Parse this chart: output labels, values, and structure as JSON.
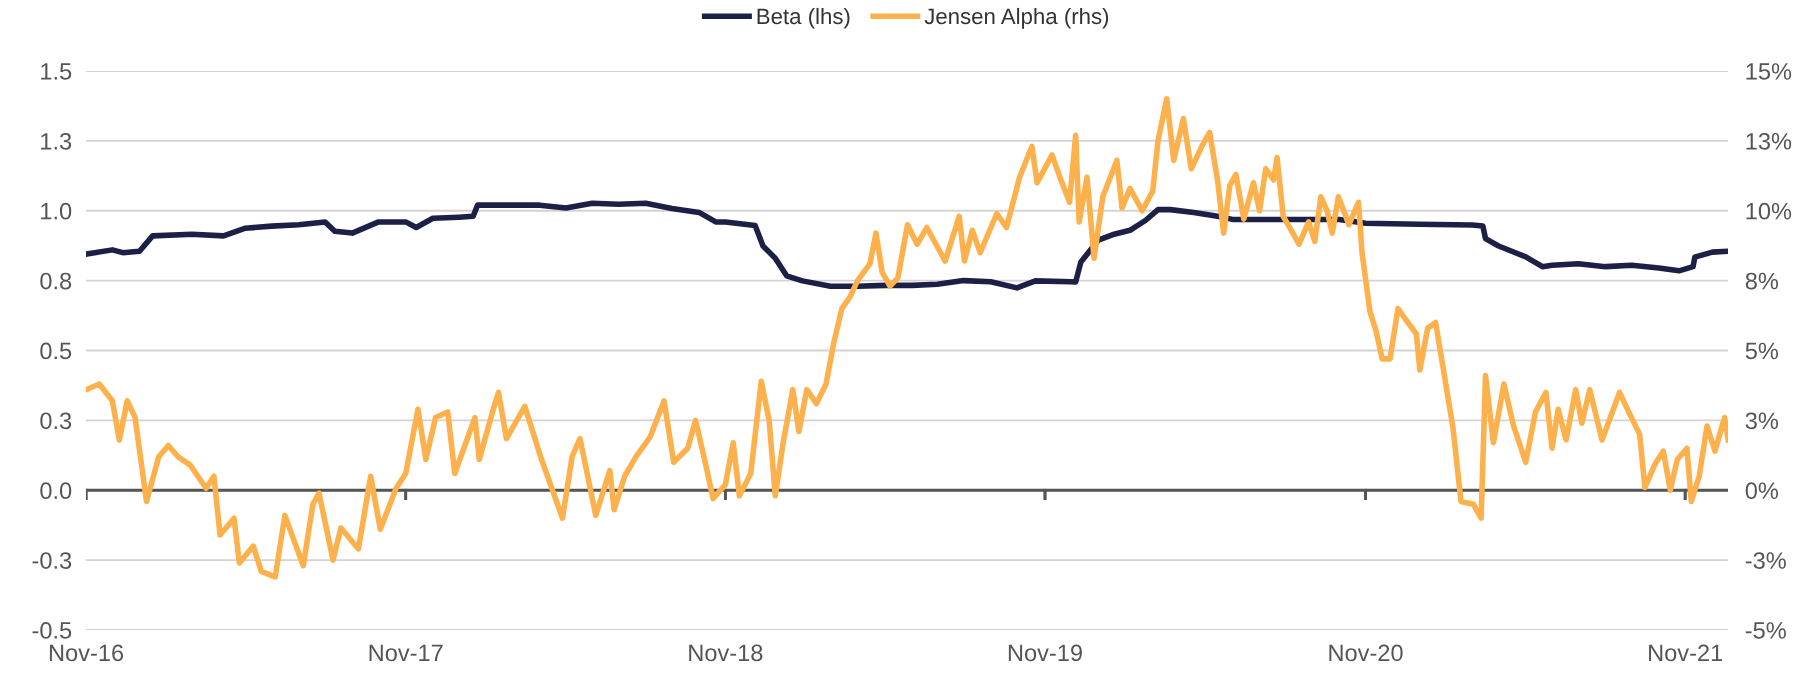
{
  "chart_data": {
    "type": "line",
    "xlim": [
      "2016-11-01",
      "2021-12-20"
    ],
    "xticks": [
      {
        "value": "2016-11-01",
        "label": "Nov-16"
      },
      {
        "value": "2017-11-01",
        "label": "Nov-17"
      },
      {
        "value": "2018-11-01",
        "label": "Nov-18"
      },
      {
        "value": "2019-11-01",
        "label": "Nov-19"
      },
      {
        "value": "2020-11-01",
        "label": "Nov-20"
      },
      {
        "value": "2021-11-01",
        "label": "Nov-21"
      }
    ],
    "ylim": [
      -0.5,
      1.5
    ],
    "yticks": [
      {
        "value": -0.5,
        "label": "-0.5"
      },
      {
        "value": -0.25,
        "label": "-0.3"
      },
      {
        "value": 0,
        "label": "0.0"
      },
      {
        "value": 0.25,
        "label": "0.3"
      },
      {
        "value": 0.5,
        "label": "0.5"
      },
      {
        "value": 0.75,
        "label": "0.8"
      },
      {
        "value": 1,
        "label": "1.0"
      },
      {
        "value": 1.25,
        "label": "1.3"
      },
      {
        "value": 1.5,
        "label": "1.5"
      }
    ],
    "y2lim": [
      -5,
      15
    ],
    "y2ticks": [
      {
        "value": -5,
        "label": "-5%"
      },
      {
        "value": -2.5,
        "label": "-3%"
      },
      {
        "value": 0,
        "label": "0%"
      },
      {
        "value": 2.5,
        "label": "3%"
      },
      {
        "value": 5,
        "label": "5%"
      },
      {
        "value": 7.5,
        "label": "8%"
      },
      {
        "value": 10,
        "label": "10%"
      },
      {
        "value": 12.5,
        "label": "13%"
      },
      {
        "value": 15,
        "label": "15%"
      }
    ],
    "ref_lines": [
      {
        "axis": "y",
        "value": 0,
        "color": "#555555"
      }
    ],
    "grid": "y",
    "legend": "top",
    "marker": "none",
    "line_style": "solid",
    "series": [
      {
        "name": "Beta (lhs)",
        "color": "#1c2046",
        "x": [
          "2016-11-01",
          "2016-12-01",
          "2016-12-13",
          "2017-01-01",
          "2017-01-16",
          "2017-03-02",
          "2017-04-07",
          "2017-05-02",
          "2017-06-01",
          "2017-07-02",
          "2017-08-01",
          "2017-08-12",
          "2017-09-01",
          "2017-10-01",
          "2017-11-01",
          "2017-11-13",
          "2017-12-02",
          "2018-01-01",
          "2018-01-17",
          "2018-01-22",
          "2018-03-03",
          "2018-04-03",
          "2018-05-03",
          "2018-06-02",
          "2018-07-02",
          "2018-08-02",
          "2018-09-01",
          "2018-10-02",
          "2018-10-21",
          "2018-11-01",
          "2018-12-05",
          "2018-12-14",
          "2018-12-28",
          "2019-01-10",
          "2019-01-28",
          "2019-03-01",
          "2019-04-01",
          "2019-05-03",
          "2019-06-03",
          "2019-07-01",
          "2019-07-31",
          "2019-08-31",
          "2019-09-30",
          "2019-10-21",
          "2019-11-30",
          "2019-12-06",
          "2019-12-12",
          "2020-01-01",
          "2020-01-19",
          "2020-02-06",
          "2020-02-24",
          "2020-03-09",
          "2020-03-23",
          "2020-04-19",
          "2020-05-16",
          "2020-06-02",
          "2020-08-02",
          "2020-10-02",
          "2020-11-01",
          "2021-01-01",
          "2021-03-03",
          "2021-03-15",
          "2021-03-18",
          "2021-04-02",
          "2021-05-03",
          "2021-05-22",
          "2021-06-02",
          "2021-07-02",
          "2021-08-02",
          "2021-09-01",
          "2021-10-02",
          "2021-10-25",
          "2021-11-10",
          "2021-11-12",
          "2021-12-02",
          "2021-12-20"
        ],
        "values": [
          0.845,
          0.86,
          0.85,
          0.855,
          0.91,
          0.916,
          0.91,
          0.9375,
          0.945,
          0.95,
          0.96,
          0.927,
          0.92,
          0.96,
          0.96,
          0.94,
          0.973,
          0.977,
          0.98,
          1.02,
          1.02,
          1.02,
          1.01,
          1.027,
          1.023,
          1.027,
          1.008,
          0.994,
          0.96,
          0.96,
          0.947,
          0.874,
          0.83,
          0.767,
          0.749,
          0.73,
          0.73,
          0.733,
          0.733,
          0.737,
          0.75,
          0.746,
          0.724,
          0.749,
          0.746,
          0.745,
          0.817,
          0.895,
          0.916,
          0.93,
          0.966,
          1.004,
          1.004,
          0.994,
          0.98,
          0.969,
          0.969,
          0.969,
          0.955,
          0.952,
          0.949,
          0.945,
          0.9,
          0.874,
          0.835,
          0.8,
          0.805,
          0.81,
          0.8,
          0.805,
          0.795,
          0.785,
          0.8,
          0.834,
          0.852,
          0.855
        ]
      },
      {
        "name": "Jensen Alpha (rhs)",
        "color": "#fdb14d",
        "axis": "y2",
        "x": [
          "2016-11-01",
          "2016-11-16",
          "2016-12-01",
          "2016-12-09",
          "2016-12-18",
          "2016-12-27",
          "2017-01-09",
          "2017-01-23",
          "2017-02-03",
          "2017-02-14",
          "2017-02-28",
          "2017-03-18",
          "2017-03-27",
          "2017-04-03",
          "2017-04-19",
          "2017-04-25",
          "2017-05-11",
          "2017-05-20",
          "2017-06-05",
          "2017-06-16",
          "2017-07-07",
          "2017-07-18",
          "2017-07-25",
          "2017-08-10",
          "2017-08-19",
          "2017-09-08",
          "2017-09-22",
          "2017-10-03",
          "2017-10-21",
          "2017-11-01",
          "2017-11-15",
          "2017-11-24",
          "2017-12-05",
          "2017-12-19",
          "2017-12-27",
          "2018-01-19",
          "2018-01-24",
          "2018-02-09",
          "2018-02-15",
          "2018-02-24",
          "2018-03-17",
          "2018-04-04",
          "2018-04-29",
          "2018-05-10",
          "2018-05-19",
          "2018-06-06",
          "2018-06-22",
          "2018-06-27",
          "2018-07-09",
          "2018-07-22",
          "2018-08-07",
          "2018-08-23",
          "2018-09-03",
          "2018-09-19",
          "2018-09-28",
          "2018-10-09",
          "2018-10-18",
          "2018-11-01",
          "2018-11-10",
          "2018-11-17",
          "2018-11-30",
          "2018-12-12",
          "2018-12-21",
          "2018-12-28",
          "2019-01-06",
          "2019-01-17",
          "2019-01-24",
          "2019-02-02",
          "2019-02-13",
          "2019-02-24",
          "2019-03-05",
          "2019-03-14",
          "2019-03-23",
          "2019-04-01",
          "2019-04-15",
          "2019-04-22",
          "2019-04-29",
          "2019-05-08",
          "2019-05-17",
          "2019-05-28",
          "2019-06-08",
          "2019-06-19",
          "2019-07-10",
          "2019-07-26",
          "2019-08-01",
          "2019-08-10",
          "2019-08-19",
          "2019-09-07",
          "2019-09-18",
          "2019-10-03",
          "2019-10-17",
          "2019-10-23",
          "2019-11-09",
          "2019-11-18",
          "2019-11-29",
          "2019-12-06",
          "2019-12-10",
          "2019-12-19",
          "2019-12-27",
          "2020-01-06",
          "2020-01-22",
          "2020-01-28",
          "2020-02-06",
          "2020-02-20",
          "2020-03-03",
          "2020-03-09",
          "2020-03-19",
          "2020-03-27",
          "2020-04-07",
          "2020-04-16",
          "2020-04-28",
          "2020-05-07",
          "2020-05-16",
          "2020-05-23",
          "2020-05-30",
          "2020-06-06",
          "2020-06-15",
          "2020-06-26",
          "2020-07-03",
          "2020-07-10",
          "2020-07-19",
          "2020-07-23",
          "2020-07-30",
          "2020-08-10",
          "2020-08-17",
          "2020-08-28",
          "2020-09-04",
          "2020-09-11",
          "2020-09-18",
          "2020-09-24",
          "2020-10-01",
          "2020-10-13",
          "2020-10-24",
          "2020-10-28",
          "2020-11-06",
          "2020-11-13",
          "2020-11-20",
          "2020-11-29",
          "2020-12-08",
          "2020-12-17",
          "2020-12-29",
          "2021-01-02",
          "2021-01-11",
          "2021-01-20",
          "2021-01-29",
          "2021-02-09",
          "2021-02-18",
          "2021-03-04",
          "2021-03-13",
          "2021-03-18",
          "2021-03-27",
          "2021-04-08",
          "2021-04-19",
          "2021-05-03",
          "2021-05-14",
          "2021-05-26",
          "2021-06-02",
          "2021-06-09",
          "2021-06-18",
          "2021-06-29",
          "2021-07-06",
          "2021-07-15",
          "2021-07-29",
          "2021-08-11",
          "2021-08-18",
          "2021-08-27",
          "2021-09-10",
          "2021-09-16",
          "2021-09-27",
          "2021-10-07",
          "2021-10-15",
          "2021-10-23",
          "2021-11-03",
          "2021-11-08",
          "2021-11-17",
          "2021-11-26",
          "2021-12-05",
          "2021-12-16",
          "2021-12-20"
        ],
        "values": [
          3.6,
          3.8,
          3.2,
          1.8,
          3.2,
          2.6,
          -0.4,
          1.2,
          1.6,
          1.2,
          0.9,
          0.07,
          0.5,
          -1.6,
          -1.0,
          -2.6,
          -2.0,
          -2.9,
          -3.1,
          -0.9,
          -2.7,
          -0.5,
          -0.1,
          -2.5,
          -1.35,
          -2.1,
          0.5,
          -1.4,
          0.07,
          0.6,
          2.9,
          1.1,
          2.6,
          2.8,
          0.6,
          2.6,
          1.1,
          2.9,
          3.5,
          1.85,
          3.0,
          1.2,
          -1.0,
          1.2,
          1.85,
          -0.9,
          0.7,
          -0.7,
          0.5,
          1.2,
          1.9,
          3.2,
          1.0,
          1.5,
          2.5,
          1.0,
          -0.3,
          0.2,
          1.7,
          -0.2,
          0.6,
          3.9,
          2.5,
          -0.2,
          1.7,
          3.6,
          2.1,
          3.6,
          3.1,
          3.8,
          5.3,
          6.5,
          6.9,
          7.5,
          8.1,
          9.2,
          7.8,
          7.3,
          7.6,
          9.5,
          8.8,
          9.4,
          8.2,
          9.8,
          8.2,
          9.3,
          8.5,
          9.9,
          9.4,
          11.2,
          12.3,
          11.0,
          12.0,
          11.2,
          10.3,
          12.7,
          9.6,
          11.2,
          8.3,
          10.5,
          11.8,
          10.1,
          10.8,
          10.0,
          10.7,
          12.5,
          14.0,
          11.8,
          13.3,
          11.5,
          12.3,
          12.8,
          11.1,
          9.2,
          10.9,
          11.3,
          9.7,
          11.0,
          10.0,
          11.5,
          11.1,
          11.9,
          9.8,
          9.2,
          8.8,
          9.6,
          8.9,
          10.5,
          10.0,
          9.2,
          10.5,
          9.5,
          10.3,
          8.5,
          6.4,
          5.7,
          4.7,
          4.7,
          6.5,
          6.1,
          5.6,
          4.3,
          5.8,
          6.0,
          4.3,
          2.2,
          -0.4,
          -0.5,
          -1.0,
          4.1,
          1.7,
          3.8,
          2.3,
          1.0,
          2.8,
          3.5,
          1.5,
          2.9,
          1.8,
          3.6,
          2.4,
          3.6,
          1.8,
          2.9,
          3.5,
          2.9,
          2.0,
          0.1,
          0.9,
          1.4,
          0.0,
          1.1,
          1.5,
          -0.4,
          0.5,
          2.3,
          1.4,
          2.6,
          1.8
        ]
      }
    ]
  }
}
